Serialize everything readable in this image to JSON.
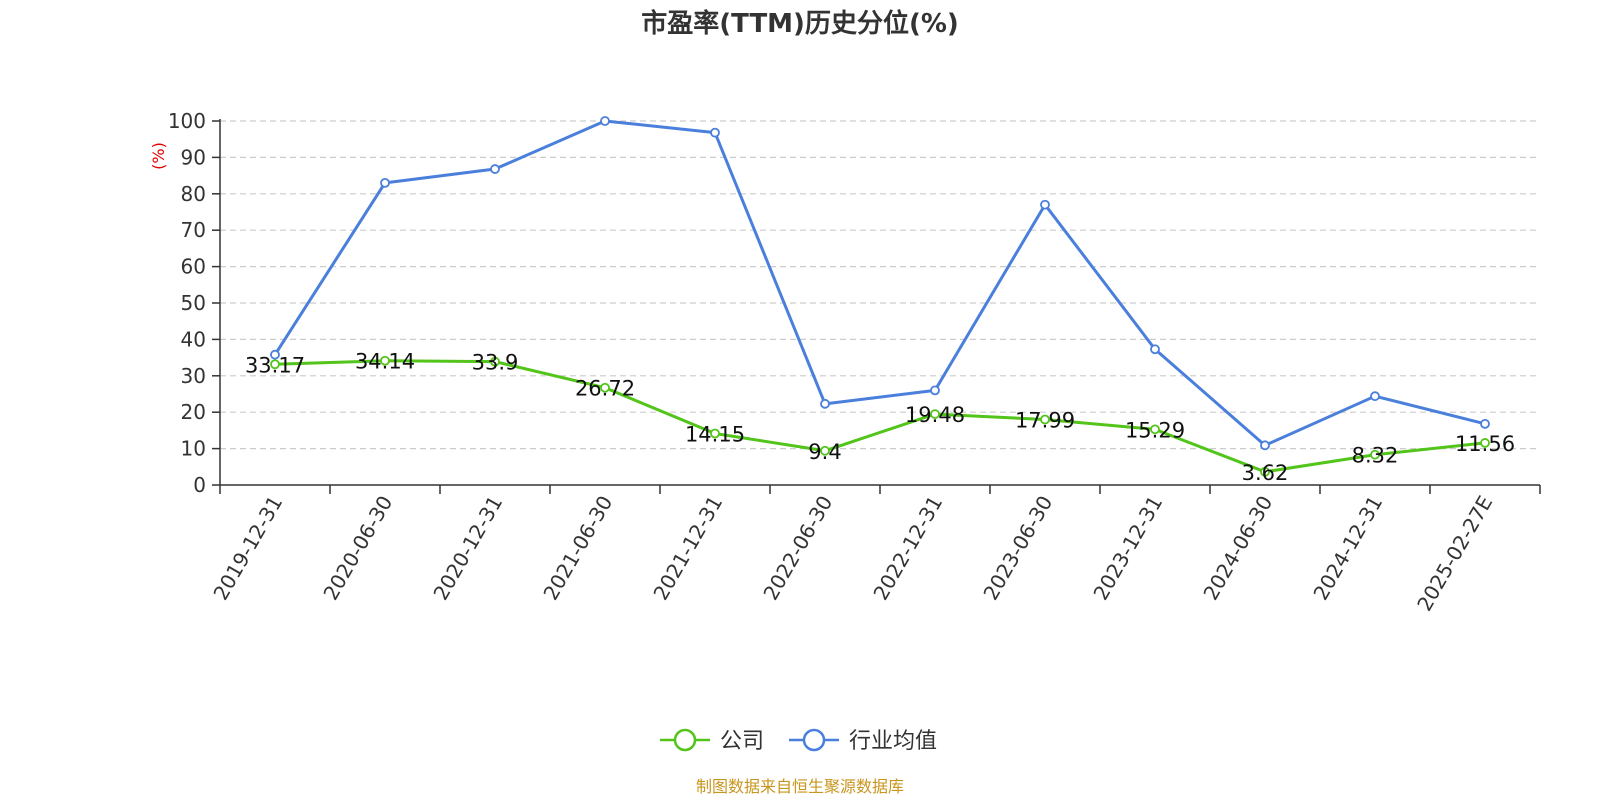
{
  "chart_data": {
    "type": "line",
    "title": "市盈率(TTM)历史分位(%)",
    "ylabel": "(%)",
    "ylim": [
      0,
      100
    ],
    "yticks": [
      0,
      10,
      20,
      30,
      40,
      50,
      60,
      70,
      80,
      90,
      100
    ],
    "grid": true,
    "legend_position": "bottom",
    "categories": [
      "2019-12-31",
      "2020-06-30",
      "2020-12-31",
      "2021-06-30",
      "2021-12-31",
      "2022-06-30",
      "2022-12-31",
      "2023-06-30",
      "2023-12-31",
      "2024-06-30",
      "2024-12-31",
      "2025-02-27E"
    ],
    "series": [
      {
        "name": "公司",
        "color": "#52c41a",
        "values": [
          33.17,
          34.14,
          33.9,
          26.72,
          14.15,
          9.4,
          19.48,
          17.99,
          15.29,
          3.62,
          8.32,
          11.56
        ],
        "labels": [
          "33.17",
          "34.14",
          "33.9",
          "26.72",
          "14.15",
          "9.4",
          "19.48",
          "17.99",
          "15.29",
          "3.62",
          "8.32",
          "11.56"
        ]
      },
      {
        "name": "行业均值",
        "color": "#4a7fdc",
        "values": [
          35.8,
          83.0,
          86.8,
          100.0,
          96.8,
          22.3,
          26.0,
          77.0,
          37.3,
          10.9,
          24.4,
          16.8
        ]
      }
    ],
    "source": "制图数据来自恒生聚源数据库",
    "source_color": "#c8961e",
    "ylabel_color": "#e00000"
  }
}
